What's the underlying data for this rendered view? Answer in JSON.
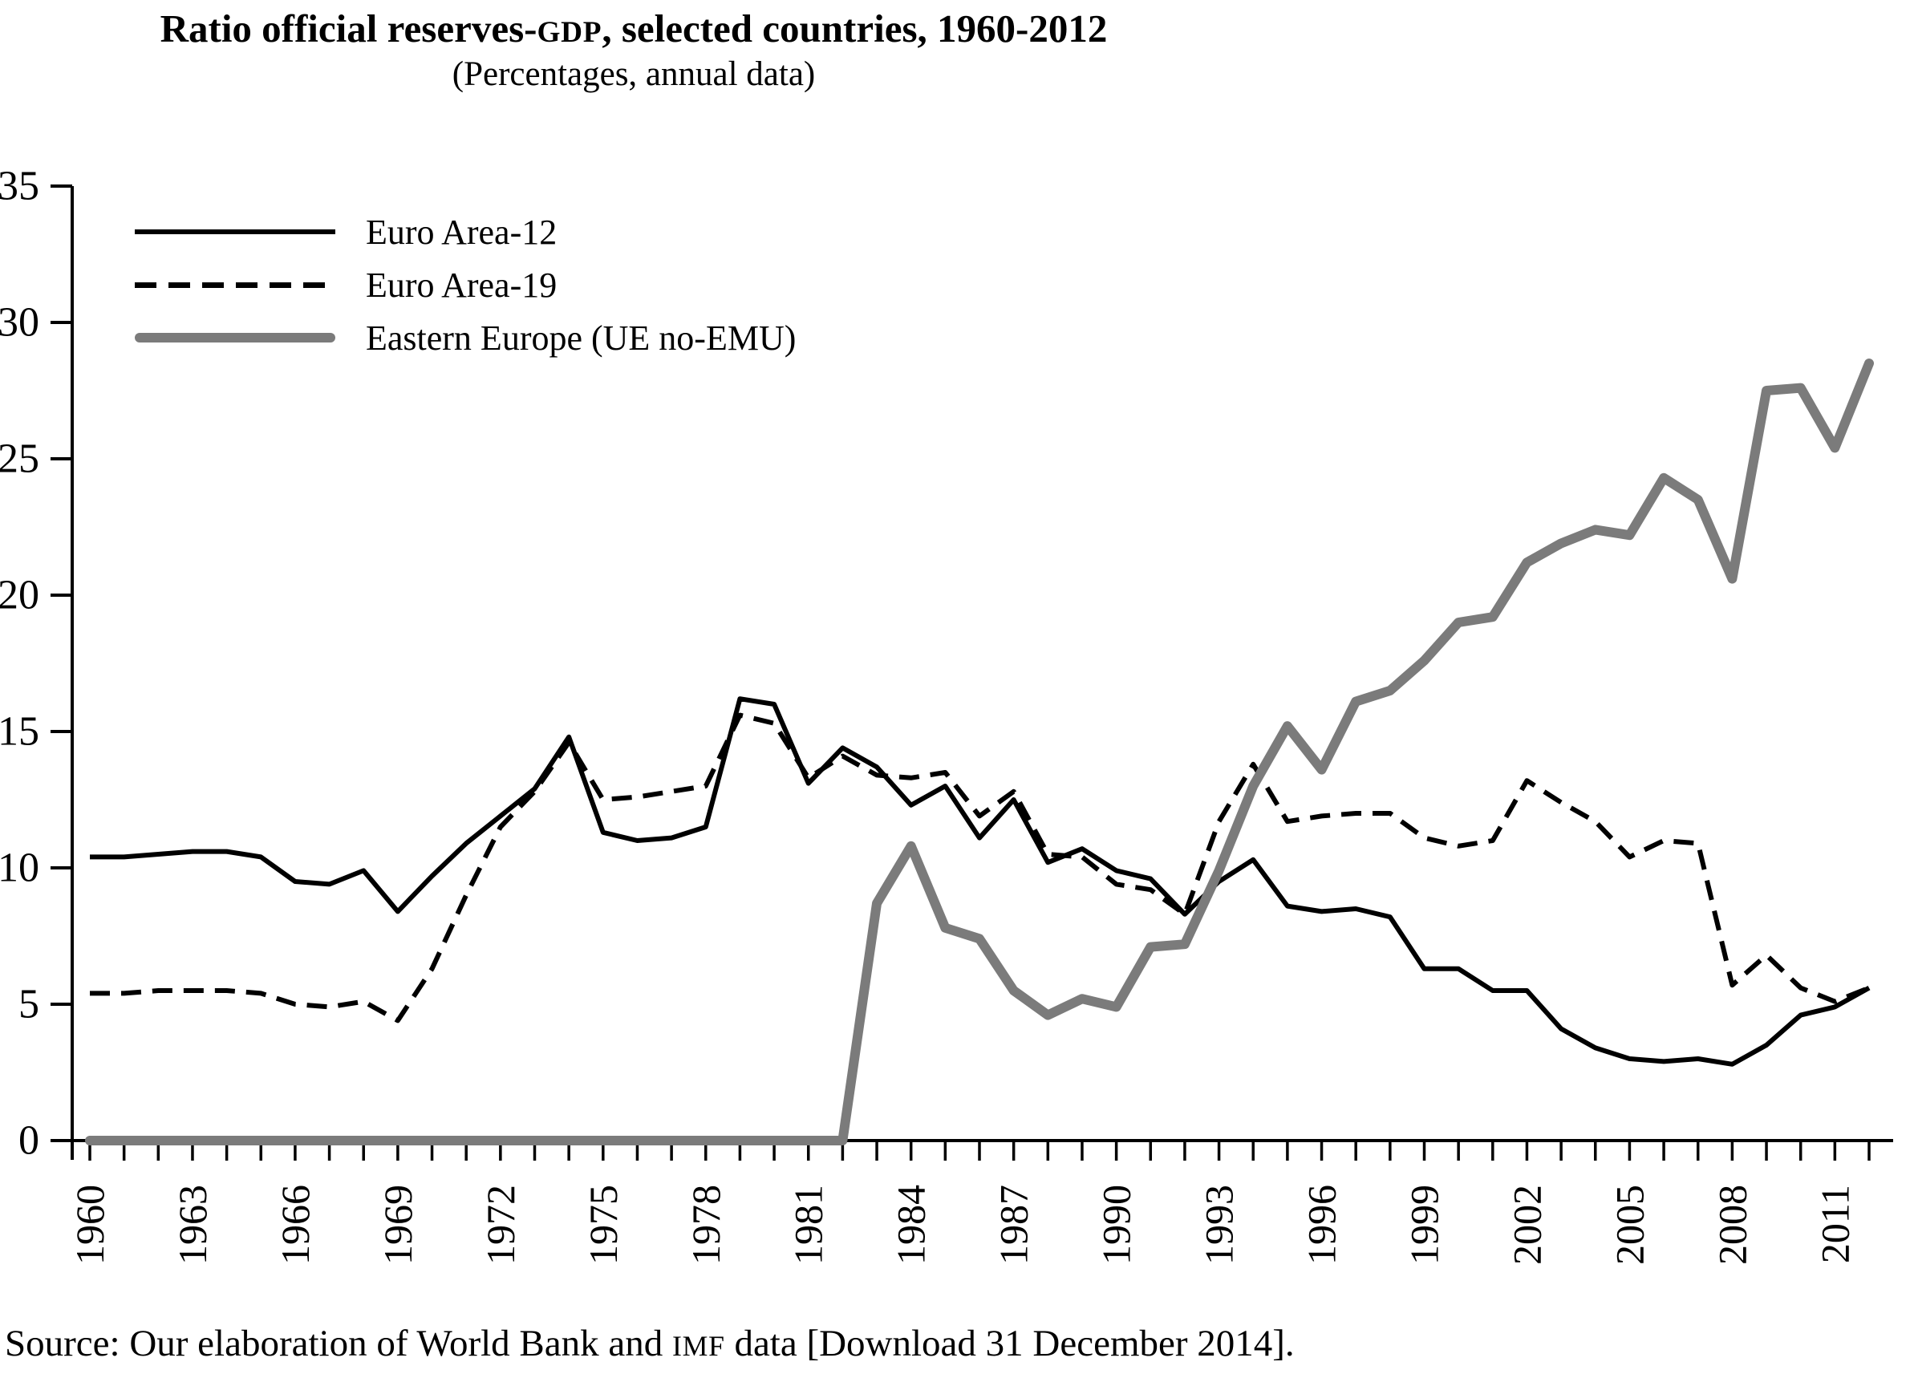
{
  "title": {
    "part1": "Ratio official reserves-",
    "gdp": "GDP",
    "part2": ", selected countries, 1960-2012"
  },
  "subtitle": "(Percentages, annual data)",
  "source": {
    "part1": "Source: Our elaboration of World Bank and ",
    "imf": "IMF",
    "part2": " data [Download 31 December 2014]."
  },
  "chart_data": {
    "type": "line",
    "title": "Ratio official reserves-GDP, selected countries, 1960-2012",
    "subtitle": "(Percentages, annual data)",
    "xlabel": "",
    "ylabel": "",
    "grid": false,
    "legend_position": "top-left",
    "xlim": [
      1960,
      2012
    ],
    "ylim": [
      0,
      35
    ],
    "yticks": [
      0,
      5,
      10,
      15,
      20,
      25,
      30,
      35
    ],
    "xtick_label_years": [
      1960,
      1963,
      1966,
      1969,
      1972,
      1975,
      1978,
      1981,
      1984,
      1987,
      1990,
      1993,
      1996,
      1999,
      2002,
      2005,
      2008,
      2011
    ],
    "x": [
      1960,
      1961,
      1962,
      1963,
      1964,
      1965,
      1966,
      1967,
      1968,
      1969,
      1970,
      1971,
      1972,
      1973,
      1974,
      1975,
      1976,
      1977,
      1978,
      1979,
      1980,
      1981,
      1982,
      1983,
      1984,
      1985,
      1986,
      1987,
      1988,
      1989,
      1990,
      1991,
      1992,
      1993,
      1994,
      1995,
      1996,
      1997,
      1998,
      1999,
      2000,
      2001,
      2002,
      2003,
      2004,
      2005,
      2006,
      2007,
      2008,
      2009,
      2010,
      2011,
      2012
    ],
    "series": [
      {
        "name": "Euro Area-12",
        "style": "solid",
        "color": "#000000",
        "width": 6,
        "values": [
          10.4,
          10.4,
          10.5,
          10.6,
          10.6,
          10.4,
          9.5,
          9.4,
          9.9,
          8.4,
          9.7,
          10.9,
          11.9,
          12.9,
          14.8,
          11.3,
          11.0,
          11.1,
          11.5,
          16.2,
          16.0,
          13.1,
          14.4,
          13.7,
          12.3,
          13.0,
          11.1,
          12.5,
          10.2,
          10.7,
          9.9,
          9.6,
          8.3,
          9.5,
          10.3,
          8.6,
          8.4,
          8.5,
          8.2,
          6.3,
          6.3,
          5.5,
          5.5,
          4.1,
          3.4,
          3.0,
          2.9,
          3.0,
          2.8,
          3.5,
          4.6,
          4.9,
          5.6
        ]
      },
      {
        "name": "Euro Area-19",
        "style": "dashed",
        "color": "#000000",
        "width": 6,
        "values": [
          5.4,
          5.4,
          5.5,
          5.5,
          5.5,
          5.4,
          5.0,
          4.9,
          5.1,
          4.4,
          6.3,
          9.0,
          11.5,
          12.8,
          14.6,
          12.5,
          12.6,
          12.8,
          13.0,
          15.6,
          15.3,
          13.3,
          14.1,
          13.4,
          13.3,
          13.5,
          11.9,
          12.8,
          10.5,
          10.4,
          9.4,
          9.2,
          8.3,
          11.7,
          13.8,
          11.7,
          11.9,
          12.0,
          12.0,
          11.1,
          10.8,
          11.0,
          13.2,
          12.4,
          11.7,
          10.4,
          11.0,
          10.9,
          5.7,
          6.8,
          5.6,
          5.1,
          5.6
        ]
      },
      {
        "name": "Eastern Europe (UE no-EMU)",
        "style": "solid",
        "color": "#7b7b7b",
        "width": 12,
        "values": [
          0,
          0,
          0,
          0,
          0,
          0,
          0,
          0,
          0,
          0,
          0,
          0,
          0,
          0,
          0,
          0,
          0,
          0,
          0,
          0,
          0,
          0,
          0,
          8.7,
          10.8,
          7.8,
          7.4,
          5.5,
          4.6,
          5.2,
          4.9,
          7.1,
          7.2,
          9.9,
          13.0,
          15.2,
          13.6,
          16.1,
          16.5,
          17.6,
          19.0,
          19.2,
          21.2,
          21.9,
          22.4,
          22.2,
          24.3,
          23.5,
          20.6,
          27.5,
          27.6,
          25.4,
          28.5
        ]
      }
    ]
  }
}
